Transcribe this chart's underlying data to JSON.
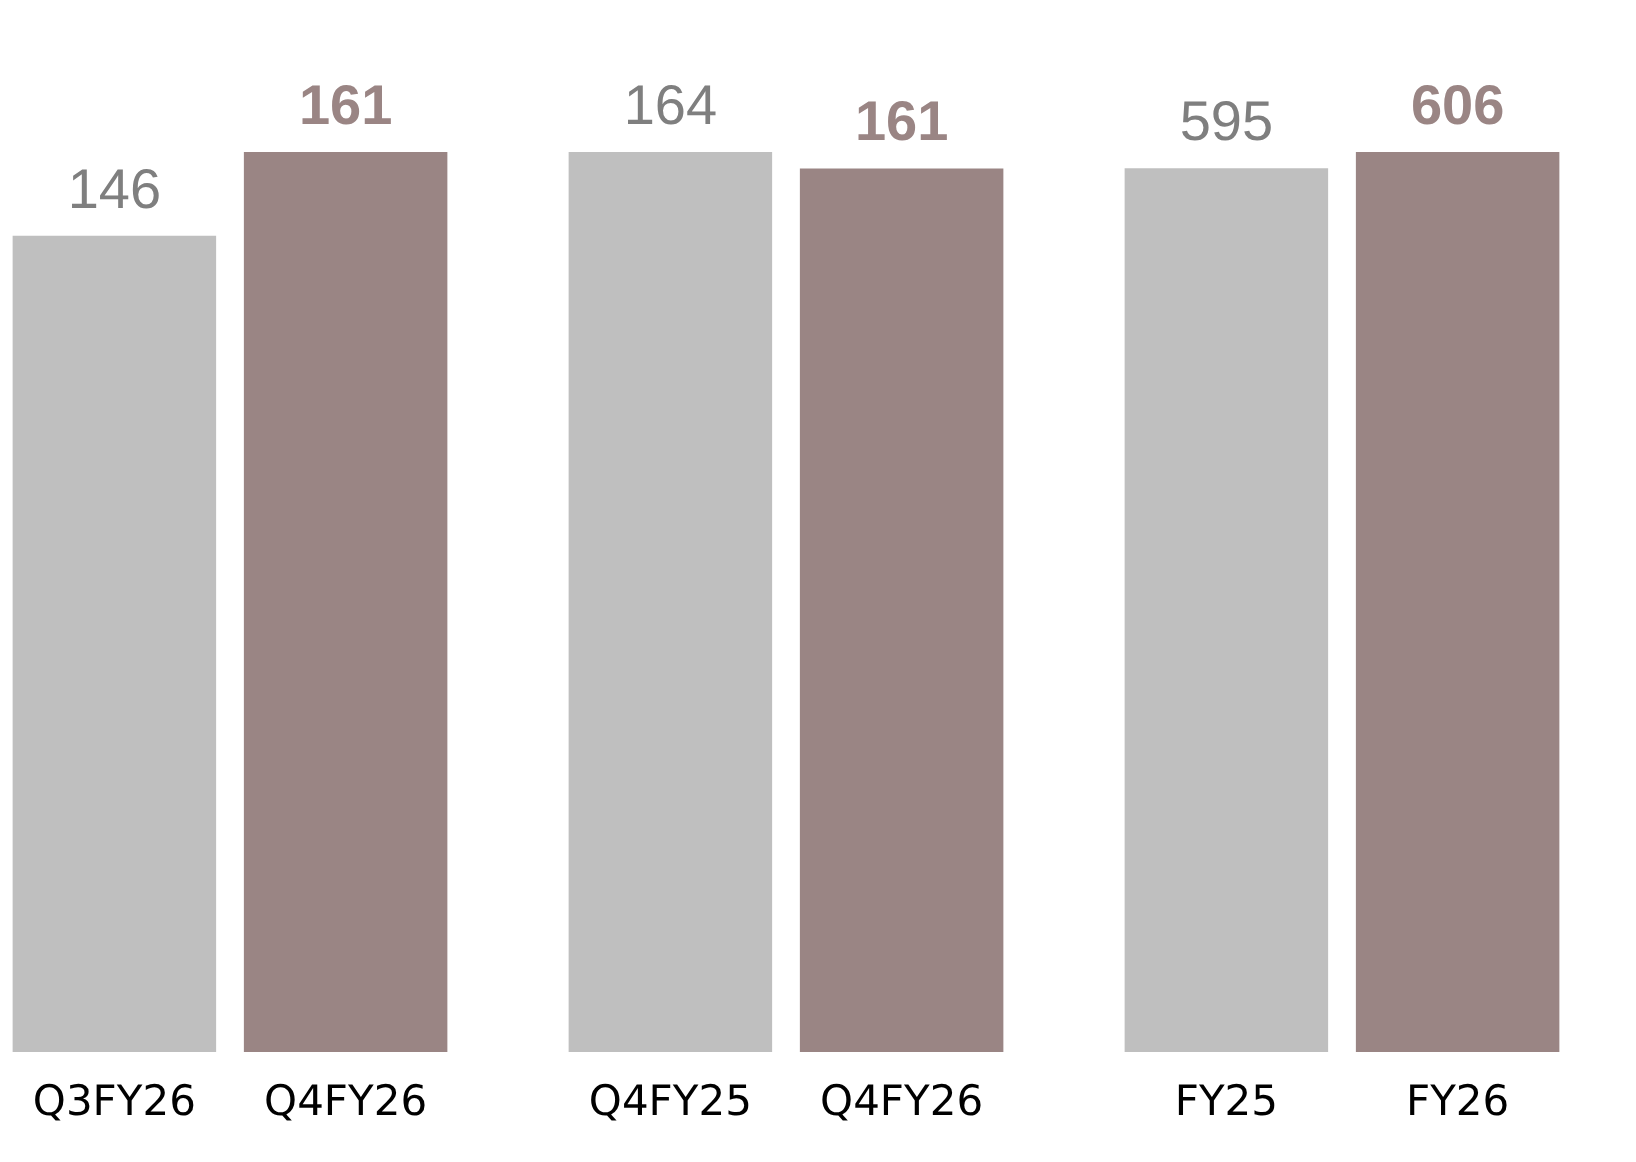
{
  "chart_data": [
    {
      "type": "bar",
      "categories": [
        "Q3FY26",
        "Q4FY26"
      ],
      "values": [
        146,
        161
      ],
      "colors": [
        "#bfbfbf",
        "#9a8584"
      ],
      "data_labels": true,
      "tick_labels": "x",
      "grid": false
    },
    {
      "type": "bar",
      "categories": [
        "Q4FY25",
        "Q4FY26"
      ],
      "values": [
        164,
        161
      ],
      "colors": [
        "#bfbfbf",
        "#9a8584"
      ],
      "data_labels": true,
      "tick_labels": "x",
      "grid": false
    },
    {
      "type": "bar",
      "categories": [
        "FY25",
        "FY26"
      ],
      "values": [
        595,
        606
      ],
      "colors": [
        "#bfbfbf",
        "#9a8584"
      ],
      "data_labels": true,
      "tick_labels": "x",
      "grid": false
    }
  ]
}
